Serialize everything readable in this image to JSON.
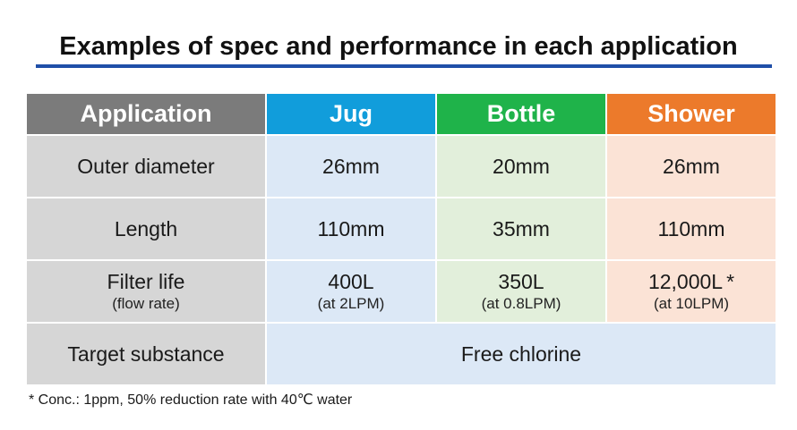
{
  "title": "Examples of spec and performance in each application",
  "colors": {
    "title_rule": "#1f4fa8",
    "header_application": "#7b7b7b",
    "header_jug": "#119ddb",
    "header_bottle": "#1fb34a",
    "header_shower": "#ec7a2b",
    "label_cell": "#d6d6d6",
    "jug_cell": "#dce8f6",
    "bottle_cell": "#e2efdb",
    "shower_cell": "#fbe3d6"
  },
  "table": {
    "headers": [
      "Application",
      "Jug",
      "Bottle",
      "Shower"
    ],
    "rows": [
      {
        "label": "Outer diameter",
        "jug": "26mm",
        "bottle": "20mm",
        "shower": "26mm"
      },
      {
        "label": "Length",
        "jug": "110mm",
        "bottle": "35mm",
        "shower": "110mm"
      },
      {
        "label": "Filter life",
        "label_sub": "(flow rate)",
        "jug": "400L",
        "jug_sub": "(at 2LPM)",
        "bottle": "350L",
        "bottle_sub": "(at 0.8LPM)",
        "shower": "12,000L",
        "shower_mark": "*",
        "shower_sub": "(at 10LPM)"
      },
      {
        "label": "Target substance",
        "merged": "Free chlorine"
      }
    ]
  },
  "footnote": "* Conc.: 1ppm, 50% reduction rate with 40℃ water"
}
